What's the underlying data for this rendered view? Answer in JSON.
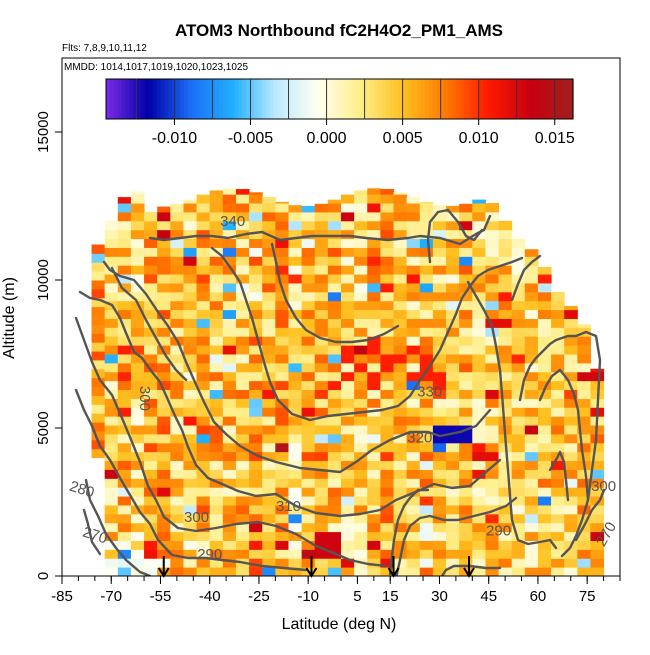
{
  "chart_data": {
    "type": "heatmap",
    "title": "ATOM3 Northbound fC2H4O2_PM1_AMS",
    "subtitle_flights": "Flts: 7,8,9,10,11,12",
    "subtitle_dates": "MMDD: 1014,1017,1019,1020,1023,1025",
    "xlabel": "Latitude (deg N)",
    "ylabel": "Altitude (m)",
    "xlim": [
      -85,
      85
    ],
    "ylim": [
      0,
      17500
    ],
    "x_ticks": [
      "-85",
      "-70",
      "-55",
      "-40",
      "-25",
      "-10",
      "5",
      "15",
      "30",
      "45",
      "60",
      "75"
    ],
    "x_tick_values": [
      -85,
      -70,
      -55,
      -40,
      -25,
      -10,
      5,
      15,
      30,
      45,
      60,
      75
    ],
    "y_ticks": [
      "0",
      "5000",
      "10000",
      "15000"
    ],
    "y_tick_values": [
      0,
      5000,
      10000,
      15000
    ],
    "colorbar": {
      "range": [
        -0.0145,
        0.0162
      ],
      "tick_labels": [
        "-0.010",
        "-0.005",
        "0.000",
        "0.005",
        "0.010",
        "0.015"
      ],
      "tick_values": [
        -0.01,
        -0.005,
        0.0,
        0.005,
        0.01,
        0.015
      ],
      "colors": [
        "#7b2ce8",
        "#0000a8",
        "#1c6ef5",
        "#20b0ff",
        "#bde9ff",
        "#fffff0",
        "#ffee88",
        "#ffc020",
        "#ff7a00",
        "#ff1a00",
        "#c80010",
        "#a02020"
      ]
    },
    "theta_contour_labels": [
      "340",
      "330",
      "320",
      "310",
      "300",
      "300",
      "300",
      "290",
      "290",
      "280",
      "270",
      "270"
    ],
    "profile_markers_lat": [
      -54,
      -9,
      16,
      39
    ]
  }
}
